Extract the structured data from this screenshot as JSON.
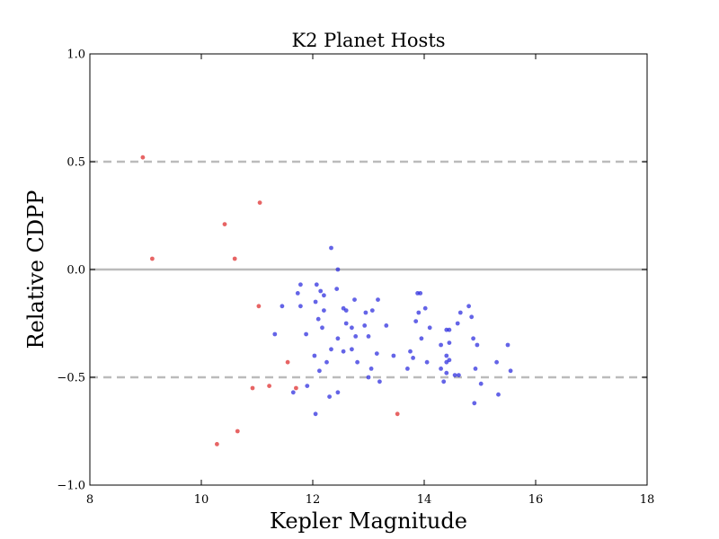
{
  "chart_data": {
    "type": "scatter",
    "title": "K2 Planet Hosts",
    "xlabel": "Kepler Magnitude",
    "ylabel": "Relative CDPP",
    "xlim": [
      8,
      18
    ],
    "ylim": [
      -1.0,
      1.0
    ],
    "xticks": [
      8,
      10,
      12,
      14,
      16,
      18
    ],
    "yticks": [
      -1.0,
      -0.5,
      0.0,
      0.5,
      1.0
    ],
    "yticklabels": [
      "−1.0",
      "−0.5",
      "0.0",
      "0.5",
      "1.0"
    ],
    "grid": false,
    "legend": "none",
    "reference_lines": [
      {
        "y": 0.5,
        "style": "dashed",
        "color": "#bbbbbb"
      },
      {
        "y": 0.0,
        "style": "solid",
        "color": "#bbbbbb"
      },
      {
        "y": -0.5,
        "style": "dashed",
        "color": "#bbbbbb"
      }
    ],
    "series": [
      {
        "color": "#dd2222",
        "points": [
          [
            8.95,
            0.52
          ],
          [
            9.12,
            0.05
          ],
          [
            10.42,
            0.21
          ],
          [
            11.05,
            0.31
          ],
          [
            10.6,
            0.05
          ],
          [
            11.03,
            -0.17
          ],
          [
            11.55,
            -0.43
          ],
          [
            11.7,
            -0.55
          ],
          [
            11.22,
            -0.54
          ],
          [
            10.92,
            -0.55
          ],
          [
            10.28,
            -0.81
          ],
          [
            10.65,
            -0.75
          ],
          [
            13.52,
            -0.67
          ]
        ]
      },
      {
        "color": "#2222dd",
        "points": [
          [
            12.33,
            0.1
          ],
          [
            12.45,
            0.0
          ],
          [
            12.43,
            -0.09
          ],
          [
            11.78,
            -0.07
          ],
          [
            12.07,
            -0.07
          ],
          [
            11.73,
            -0.11
          ],
          [
            12.14,
            -0.1
          ],
          [
            12.2,
            -0.12
          ],
          [
            12.05,
            -0.15
          ],
          [
            11.45,
            -0.17
          ],
          [
            11.78,
            -0.17
          ],
          [
            12.2,
            -0.19
          ],
          [
            12.55,
            -0.18
          ],
          [
            12.6,
            -0.19
          ],
          [
            12.75,
            -0.14
          ],
          [
            12.95,
            -0.2
          ],
          [
            13.07,
            -0.19
          ],
          [
            13.17,
            -0.14
          ],
          [
            12.1,
            -0.23
          ],
          [
            12.17,
            -0.27
          ],
          [
            11.88,
            -0.3
          ],
          [
            11.32,
            -0.3
          ],
          [
            12.6,
            -0.25
          ],
          [
            12.7,
            -0.27
          ],
          [
            12.93,
            -0.26
          ],
          [
            13.0,
            -0.31
          ],
          [
            12.77,
            -0.31
          ],
          [
            12.45,
            -0.32
          ],
          [
            13.32,
            -0.26
          ],
          [
            12.03,
            -0.4
          ],
          [
            12.33,
            -0.37
          ],
          [
            12.55,
            -0.38
          ],
          [
            12.7,
            -0.37
          ],
          [
            12.8,
            -0.43
          ],
          [
            12.25,
            -0.43
          ],
          [
            13.05,
            -0.46
          ],
          [
            13.15,
            -0.39
          ],
          [
            12.12,
            -0.47
          ],
          [
            13.0,
            -0.5
          ],
          [
            13.2,
            -0.52
          ],
          [
            11.9,
            -0.54
          ],
          [
            11.65,
            -0.57
          ],
          [
            12.3,
            -0.59
          ],
          [
            12.45,
            -0.57
          ],
          [
            12.05,
            -0.67
          ],
          [
            13.88,
            -0.11
          ],
          [
            13.93,
            -0.11
          ],
          [
            14.02,
            -0.18
          ],
          [
            13.85,
            -0.24
          ],
          [
            13.9,
            -0.2
          ],
          [
            14.1,
            -0.27
          ],
          [
            13.95,
            -0.32
          ],
          [
            13.75,
            -0.38
          ],
          [
            13.8,
            -0.41
          ],
          [
            13.45,
            -0.4
          ],
          [
            13.7,
            -0.46
          ],
          [
            14.05,
            -0.43
          ],
          [
            14.3,
            -0.35
          ],
          [
            14.4,
            -0.28
          ],
          [
            14.45,
            -0.28
          ],
          [
            14.45,
            -0.34
          ],
          [
            14.4,
            -0.4
          ],
          [
            14.4,
            -0.43
          ],
          [
            14.45,
            -0.42
          ],
          [
            14.3,
            -0.46
          ],
          [
            14.4,
            -0.48
          ],
          [
            14.35,
            -0.52
          ],
          [
            14.55,
            -0.49
          ],
          [
            14.62,
            -0.49
          ],
          [
            14.65,
            -0.2
          ],
          [
            14.6,
            -0.25
          ],
          [
            14.8,
            -0.17
          ],
          [
            14.85,
            -0.22
          ],
          [
            14.88,
            -0.32
          ],
          [
            14.95,
            -0.35
          ],
          [
            14.92,
            -0.46
          ],
          [
            14.9,
            -0.62
          ],
          [
            15.02,
            -0.53
          ],
          [
            15.3,
            -0.43
          ],
          [
            15.33,
            -0.58
          ],
          [
            15.5,
            -0.35
          ],
          [
            15.55,
            -0.47
          ]
        ]
      }
    ]
  }
}
